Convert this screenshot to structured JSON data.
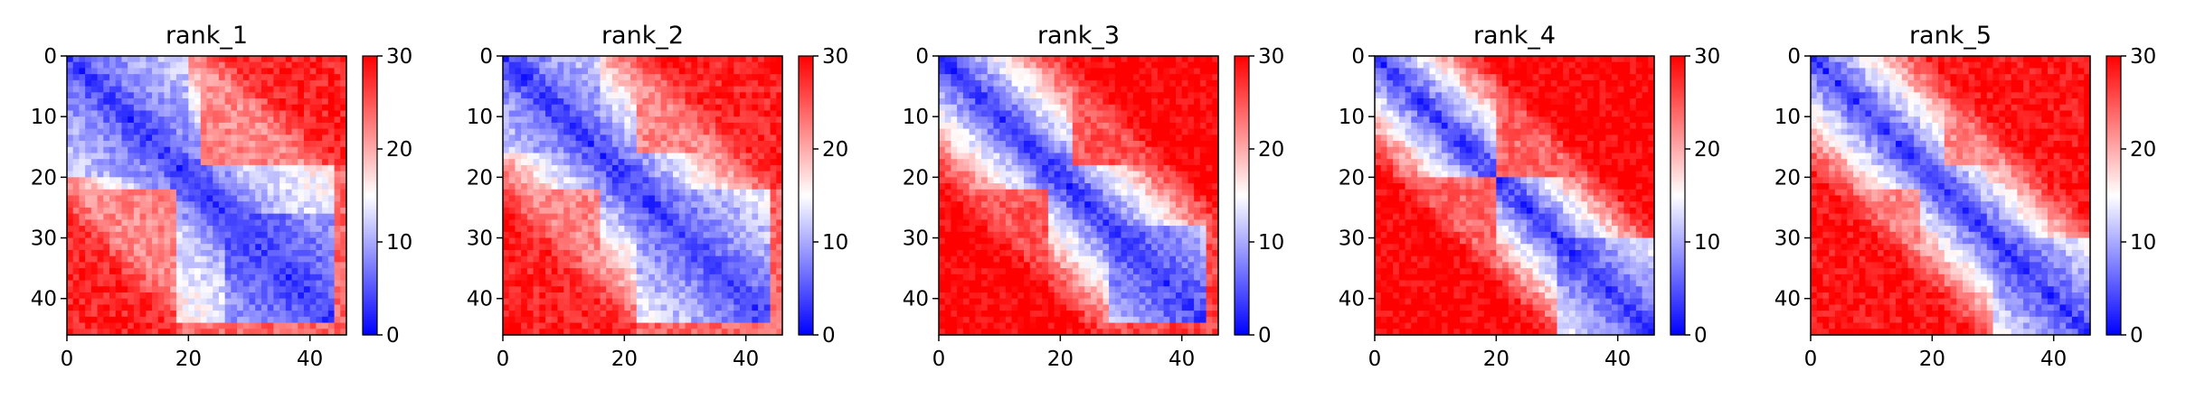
{
  "chart_data": [
    {
      "type": "heatmap",
      "title": "rank_1",
      "n": 46,
      "variant": 1,
      "xlabel": "",
      "ylabel": "",
      "xlim": [
        0,
        46
      ],
      "ylim": [
        46,
        0
      ],
      "xticks": [
        0,
        20,
        40
      ],
      "yticks": [
        0,
        10,
        20,
        30,
        40
      ],
      "colorbar": {
        "min": 0,
        "max": 30,
        "ticks": [
          0,
          10,
          20,
          30
        ],
        "colormap": "bwr"
      }
    },
    {
      "type": "heatmap",
      "title": "rank_2",
      "n": 46,
      "variant": 2,
      "xlabel": "",
      "ylabel": "",
      "xlim": [
        0,
        46
      ],
      "ylim": [
        46,
        0
      ],
      "xticks": [
        0,
        20,
        40
      ],
      "yticks": [
        0,
        10,
        20,
        30,
        40
      ],
      "colorbar": {
        "min": 0,
        "max": 30,
        "ticks": [
          0,
          10,
          20,
          30
        ],
        "colormap": "bwr"
      }
    },
    {
      "type": "heatmap",
      "title": "rank_3",
      "n": 46,
      "variant": 3,
      "xlabel": "",
      "ylabel": "",
      "xlim": [
        0,
        46
      ],
      "ylim": [
        46,
        0
      ],
      "xticks": [
        0,
        20,
        40
      ],
      "yticks": [
        0,
        10,
        20,
        30,
        40
      ],
      "colorbar": {
        "min": 0,
        "max": 30,
        "ticks": [
          0,
          10,
          20,
          30
        ],
        "colormap": "bwr"
      }
    },
    {
      "type": "heatmap",
      "title": "rank_4",
      "n": 46,
      "variant": 4,
      "xlabel": "",
      "ylabel": "",
      "xlim": [
        0,
        46
      ],
      "ylim": [
        46,
        0
      ],
      "xticks": [
        0,
        20,
        40
      ],
      "yticks": [
        0,
        10,
        20,
        30,
        40
      ],
      "colorbar": {
        "min": 0,
        "max": 30,
        "ticks": [
          0,
          10,
          20,
          30
        ],
        "colormap": "bwr"
      }
    },
    {
      "type": "heatmap",
      "title": "rank_5",
      "n": 46,
      "variant": 5,
      "xlabel": "",
      "ylabel": "",
      "xlim": [
        0,
        46
      ],
      "ylim": [
        46,
        0
      ],
      "xticks": [
        0,
        20,
        40
      ],
      "yticks": [
        0,
        10,
        20,
        30,
        40
      ],
      "colorbar": {
        "min": 0,
        "max": 30,
        "ticks": [
          0,
          10,
          20,
          30
        ],
        "colormap": "bwr"
      }
    }
  ]
}
